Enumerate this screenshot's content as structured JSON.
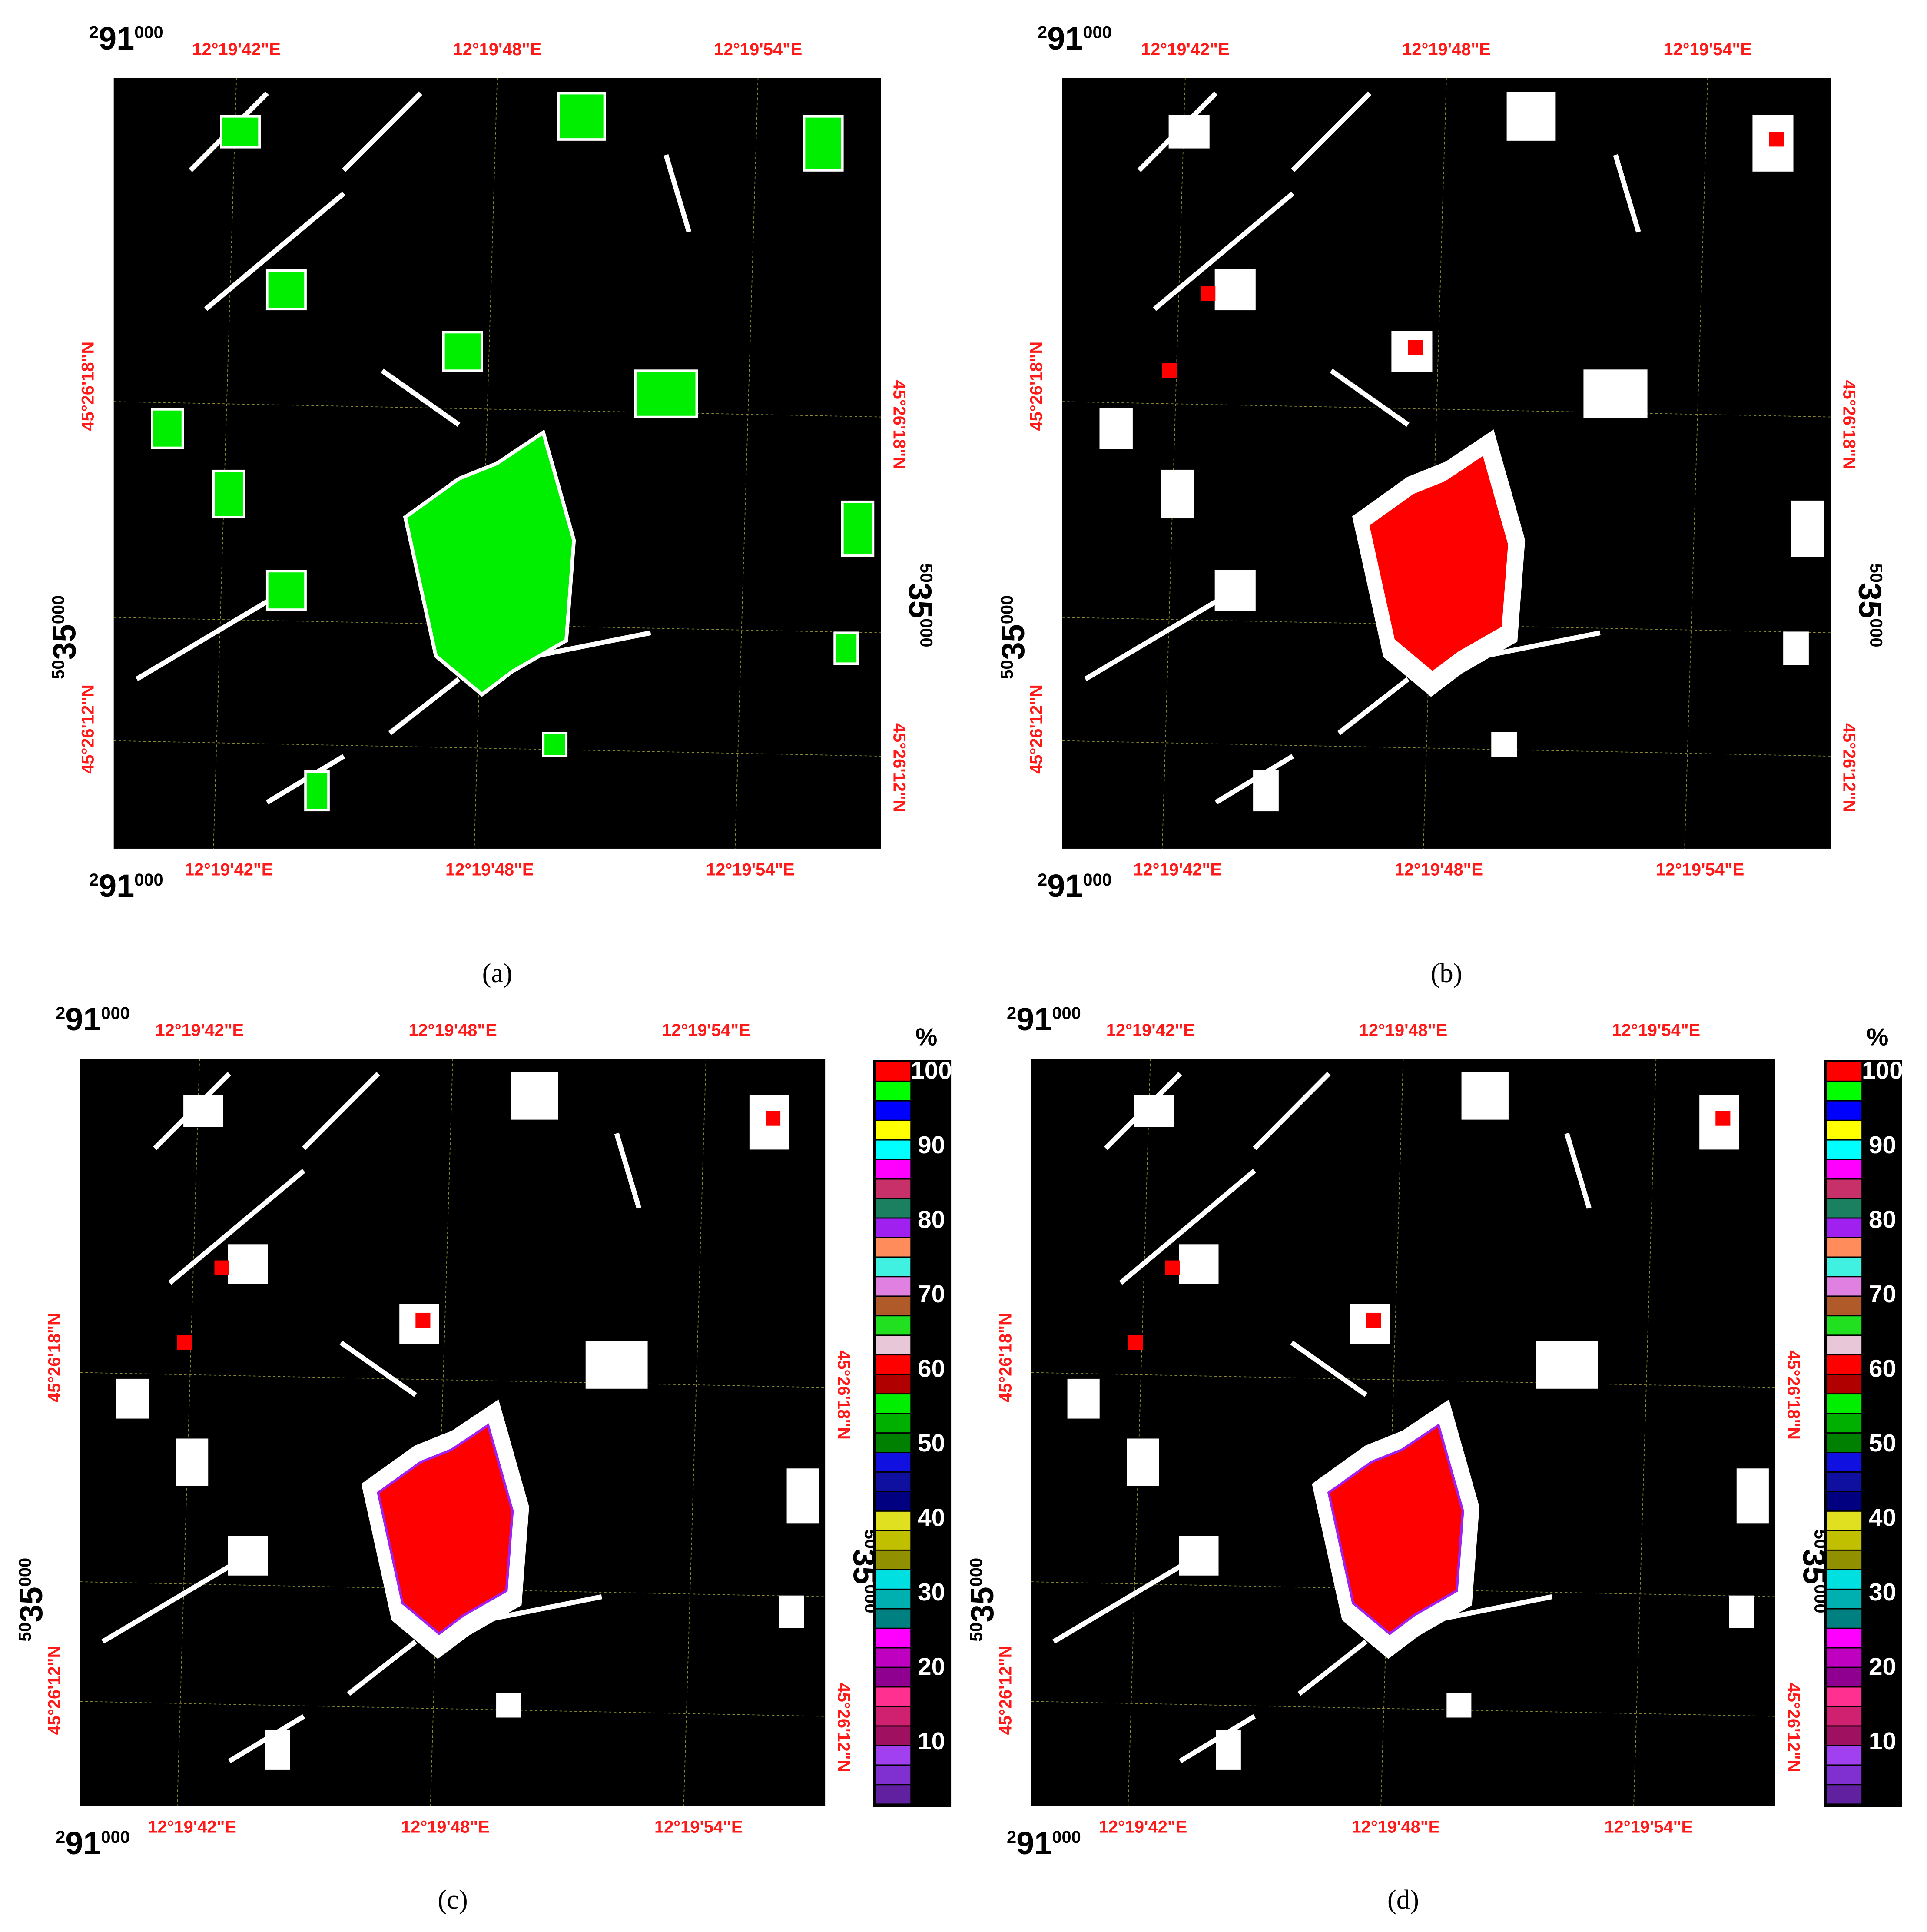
{
  "coordinates": {
    "easting_labels": [
      "12°19'42\"E",
      "12°19'48\"E",
      "12°19'54\"E"
    ],
    "northing_labels": [
      "45°26'18\"N",
      "45°26'12\"N"
    ],
    "easting_corner": [
      "2",
      "91",
      "000"
    ],
    "northing_corner": [
      "50",
      "35",
      "000"
    ]
  },
  "panels": [
    {
      "caption": "(a)"
    },
    {
      "caption": "(b)"
    },
    {
      "caption": "(c)",
      "legend": true
    },
    {
      "caption": "(d)",
      "legend": true
    }
  ],
  "legend": {
    "title": "%",
    "labels": [
      100,
      90,
      80,
      70,
      60,
      50,
      40,
      30,
      20,
      10
    ],
    "colors": [
      "#ff0000",
      "#00ff00",
      "#0000ff",
      "#ffff00",
      "#00ffff",
      "#ff00ff",
      "#c8306a",
      "#1a8060",
      "#a020f0",
      "#ff8c5a",
      "#40f0e0",
      "#e080e0",
      "#b05a2a",
      "#20e020",
      "#e8c8d8",
      "#ff0000",
      "#b00000",
      "#00ee00",
      "#00b000",
      "#008000",
      "#1010e0",
      "#1010a0",
      "#000080",
      "#e0e020",
      "#c0c000",
      "#909000",
      "#00e0e0",
      "#00b0b0",
      "#008080",
      "#ff00ff",
      "#c000c0",
      "#900090",
      "#ff3090",
      "#d02070",
      "#a01060",
      "#a040f0",
      "#8030d0",
      "#6020a0"
    ]
  }
}
